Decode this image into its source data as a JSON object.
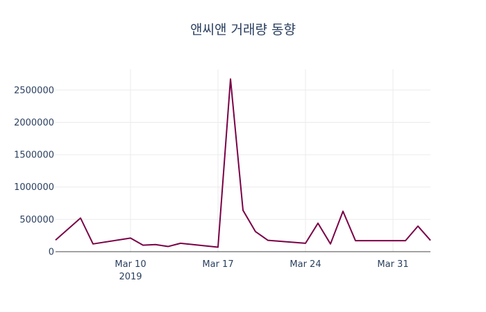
{
  "chart_data": {
    "type": "line",
    "title": "앤씨앤 거래량 동향",
    "xlabel": "",
    "ylabel": "",
    "x_tick_labels": [
      "Mar 10",
      "Mar 17",
      "Mar 24",
      "Mar 31"
    ],
    "x_tick_sublabel": "2019",
    "y_tick_labels": [
      "0",
      "500000",
      "1000000",
      "1500000",
      "2000000",
      "2500000"
    ],
    "y_ticks": [
      0,
      500000,
      1000000,
      1500000,
      2000000,
      2500000
    ],
    "xlim": [
      "2019-03-04",
      "2019-04-03"
    ],
    "ylim": [
      0,
      2820000
    ],
    "grid": true,
    "line_color": "#7a0046",
    "series": [
      {
        "x": [
          "2019-03-04",
          "2019-03-06",
          "2019-03-07",
          "2019-03-10",
          "2019-03-11",
          "2019-03-12",
          "2019-03-13",
          "2019-03-14",
          "2019-03-17",
          "2019-03-18",
          "2019-03-19",
          "2019-03-20",
          "2019-03-21",
          "2019-03-24",
          "2019-03-25",
          "2019-03-26",
          "2019-03-27",
          "2019-03-28",
          "2019-03-31",
          "2019-04-01",
          "2019-04-02",
          "2019-04-03"
        ],
        "y": [
          180000,
          520000,
          120000,
          210000,
          100000,
          110000,
          80000,
          130000,
          70000,
          2670000,
          640000,
          310000,
          175000,
          130000,
          440000,
          120000,
          625000,
          170000,
          170000,
          170000,
          395000,
          175000
        ]
      }
    ]
  }
}
